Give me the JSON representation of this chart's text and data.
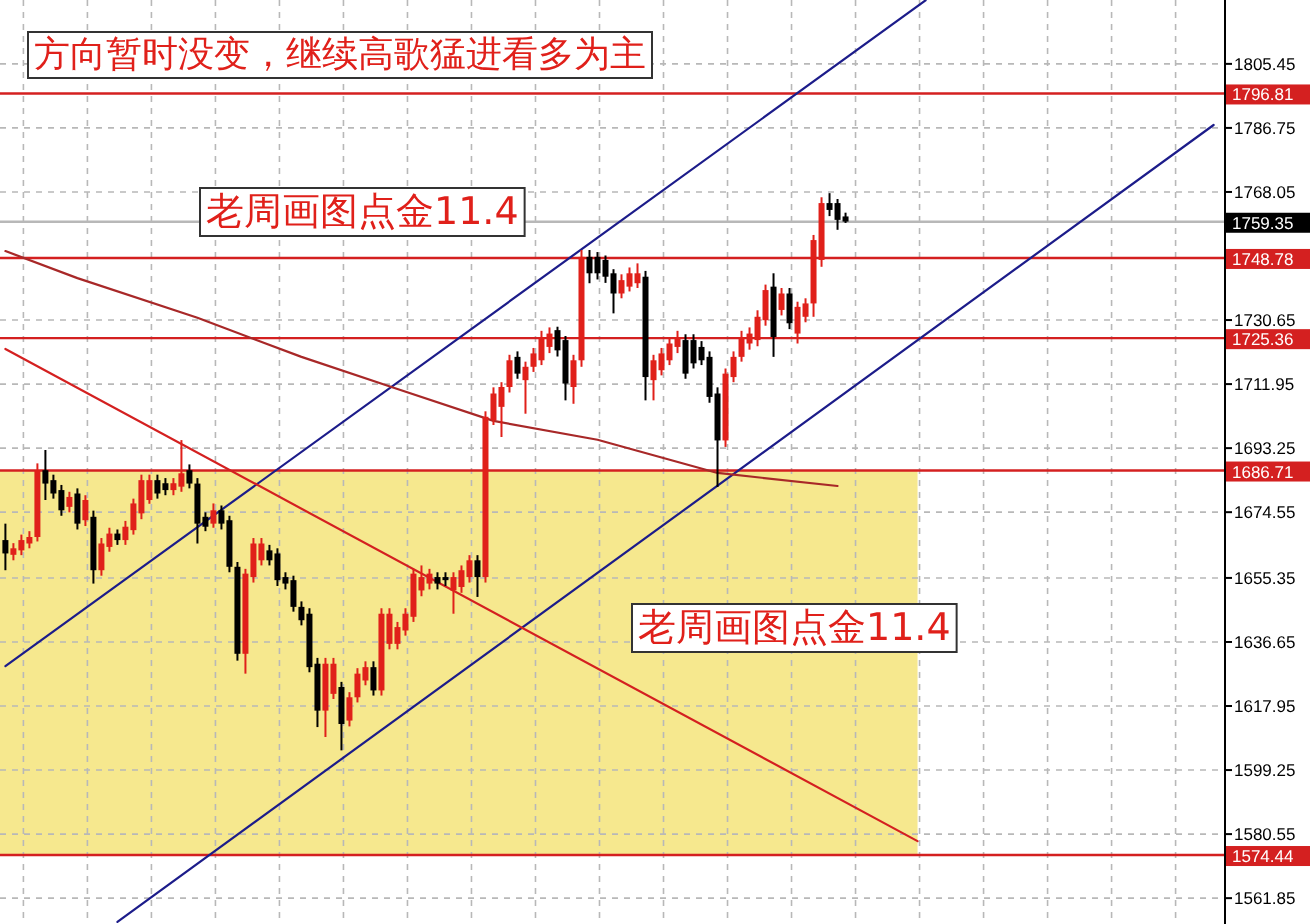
{
  "chart_data": {
    "type": "candlestick",
    "title": "方向暂时没变，继续高歌猛进看多为主",
    "annotations": [
      "老周画图点金11.4",
      "老周画图点金11.4"
    ],
    "categories": [
      null,
      null,
      null,
      null,
      null,
      null,
      null,
      null,
      null,
      null,
      null,
      null,
      null,
      null,
      null,
      null,
      null,
      null,
      null,
      null,
      null,
      null,
      null,
      null,
      null,
      null,
      null,
      null,
      null,
      null,
      null,
      null,
      null,
      null,
      null,
      null,
      null,
      null,
      null,
      null,
      null,
      null,
      null,
      null,
      null,
      null,
      null,
      null,
      null,
      null,
      null,
      null,
      null,
      null,
      null,
      null,
      null,
      null,
      null,
      null,
      null,
      null,
      null,
      null,
      null,
      null,
      null,
      null,
      null,
      null,
      null,
      null,
      null,
      null,
      null,
      null,
      null,
      null,
      null,
      null,
      null,
      null,
      null,
      null,
      null,
      null,
      null,
      null,
      null,
      null,
      null,
      null,
      null,
      null,
      null,
      null,
      null,
      null,
      null,
      null,
      null,
      null,
      null,
      null,
      null,
      null,
      null,
      null,
      null,
      null,
      null,
      null,
      null,
      null,
      null,
      null,
      null,
      null,
      null,
      null,
      null,
      null,
      null,
      null,
      null,
      null,
      null,
      null,
      null,
      null,
      null,
      null,
      null,
      null,
      null,
      null,
      null,
      null,
      null,
      null,
      null,
      null,
      null,
      null,
      null,
      null,
      null,
      null,
      null,
      null,
      null,
      null
    ],
    "ohlc": [
      [
        1666.4,
        1671.2,
        1657.6,
        1662.5
      ],
      [
        1662.1,
        1665.5,
        1660.5,
        1664.0
      ],
      [
        1663.4,
        1668,
        1662,
        1666.4
      ],
      [
        1665.4,
        1669,
        1664,
        1667.3
      ],
      [
        1667.3,
        1688.8,
        1666,
        1686.8
      ],
      [
        1686.8,
        1692.7,
        1678.1,
        1682.9
      ],
      [
        1683.9,
        1685.5,
        1678.5,
        1680.0
      ],
      [
        1681.0,
        1682.5,
        1673.5,
        1675.1
      ],
      [
        1676.1,
        1680.5,
        1674.5,
        1679.0
      ],
      [
        1680.0,
        1681.5,
        1669.5,
        1671.2
      ],
      [
        1672.2,
        1679.5,
        1670.5,
        1678.1
      ],
      [
        1673.2,
        1675,
        1653.7,
        1657.6
      ],
      [
        1657.6,
        1667,
        1656,
        1665.4
      ],
      [
        1664.4,
        1670,
        1663,
        1668.3
      ],
      [
        1668.3,
        1669.5,
        1665,
        1666.4
      ],
      [
        1666.4,
        1672,
        1665,
        1670.3
      ],
      [
        1669.3,
        1678.5,
        1668,
        1677.1
      ],
      [
        1674.2,
        1685.5,
        1672.5,
        1683.9
      ],
      [
        1678.1,
        1685.5,
        1677,
        1683.9
      ],
      [
        1683.9,
        1685.5,
        1678.5,
        1680.0
      ],
      [
        1683.0,
        1684.5,
        1679.5,
        1681.0
      ],
      [
        1681.0,
        1684.5,
        1679.5,
        1683.0
      ],
      [
        1682.0,
        1695.6,
        1680.5,
        1685.9
      ],
      [
        1686.8,
        1688.5,
        1681.5,
        1682.9
      ],
      [
        1682.9,
        1684.5,
        1665.4,
        1671.2
      ],
      [
        1673.2,
        1674.5,
        1669,
        1670.3
      ],
      [
        1671.2,
        1677.1,
        1670,
        1675.1
      ],
      [
        1675.1,
        1676.5,
        1669.5,
        1671.2
      ],
      [
        1672.2,
        1673.5,
        1657,
        1658.6
      ],
      [
        1658.6,
        1660,
        1631.2,
        1633.2
      ],
      [
        1633.2,
        1658,
        1627.4,
        1656.6
      ],
      [
        1655.6,
        1667,
        1654,
        1665.4
      ],
      [
        1660.5,
        1667,
        1659,
        1665.4
      ],
      [
        1663.4,
        1665,
        1659,
        1660.5
      ],
      [
        1662.5,
        1664,
        1653,
        1654.7
      ],
      [
        1655.6,
        1657,
        1652,
        1653.7
      ],
      [
        1654.7,
        1656,
        1645.5,
        1646.9
      ],
      [
        1646.9,
        1648.5,
        1641.5,
        1643.0
      ],
      [
        1644.9,
        1646.5,
        1627.8,
        1629.3
      ],
      [
        1630.3,
        1632,
        1611.8,
        1616.6
      ],
      [
        1616.6,
        1632,
        1608.9,
        1630.3
      ],
      [
        1621.5,
        1632,
        1620,
        1630.3
      ],
      [
        1623.5,
        1625,
        1605,
        1612.7
      ],
      [
        1613.7,
        1622,
        1612,
        1620.5
      ],
      [
        1620.5,
        1629,
        1619,
        1627.4
      ],
      [
        1625.4,
        1631,
        1624,
        1629.3
      ],
      [
        1629.3,
        1631,
        1621,
        1622.5
      ],
      [
        1622.5,
        1646.5,
        1621,
        1644.9
      ],
      [
        1636.1,
        1646.5,
        1634.5,
        1644.9
      ],
      [
        1636.1,
        1642.5,
        1634.5,
        1641.0
      ],
      [
        1640.0,
        1646.5,
        1638.5,
        1644.9
      ],
      [
        1644.0,
        1658,
        1642.5,
        1656.6
      ],
      [
        1651.7,
        1659,
        1650,
        1655.6
      ],
      [
        1653.7,
        1658,
        1652,
        1656.6
      ],
      [
        1655.6,
        1657,
        1652,
        1653.7
      ],
      [
        1655.6,
        1657,
        1653,
        1654.7
      ],
      [
        1651.7,
        1657,
        1644.9,
        1655.6
      ],
      [
        1652.7,
        1659,
        1651,
        1657.6
      ],
      [
        1655.6,
        1662,
        1654,
        1660.5
      ],
      [
        1660.5,
        1662,
        1649.8,
        1655.6
      ],
      [
        1655.6,
        1704,
        1654,
        1702.4
      ],
      [
        1701.4,
        1711,
        1700,
        1709.2
      ],
      [
        1705.3,
        1712.5,
        1696.5,
        1711.1
      ],
      [
        1711.1,
        1720.5,
        1709.5,
        1718.9
      ],
      [
        1719.9,
        1721.5,
        1713.5,
        1715.0
      ],
      [
        1713.1,
        1718.5,
        1703.3,
        1717.0
      ],
      [
        1717.0,
        1722.5,
        1715.5,
        1720.9
      ],
      [
        1718.9,
        1727.5,
        1717.5,
        1725.7
      ],
      [
        1722.8,
        1728.5,
        1721,
        1726.7
      ],
      [
        1727.7,
        1728.7,
        1720,
        1721.8
      ],
      [
        1724.8,
        1726,
        1707.2,
        1712.1
      ],
      [
        1711.1,
        1720.5,
        1706.2,
        1718.9
      ],
      [
        1718.9,
        1751.1,
        1717,
        1749.1
      ],
      [
        1749.1,
        1751.1,
        1741.4,
        1744.3
      ],
      [
        1749.1,
        1750.5,
        1742.5,
        1744.3
      ],
      [
        1748.2,
        1749.5,
        1741.5,
        1743.3
      ],
      [
        1744.3,
        1745.5,
        1732.6,
        1738.4
      ],
      [
        1738.4,
        1744,
        1737,
        1742.3
      ],
      [
        1740.4,
        1746,
        1739,
        1744.3
      ],
      [
        1741.4,
        1747.2,
        1740,
        1744.3
      ],
      [
        1743.3,
        1745,
        1707.2,
        1714.0
      ],
      [
        1713.1,
        1720.5,
        1707.2,
        1718.9
      ],
      [
        1716.0,
        1722.5,
        1714.5,
        1720.9
      ],
      [
        1718.9,
        1725.5,
        1717.5,
        1723.8
      ],
      [
        1722.8,
        1727.5,
        1721,
        1725.7
      ],
      [
        1724.8,
        1726.5,
        1713.5,
        1715.0
      ],
      [
        1724.8,
        1726.5,
        1716.5,
        1718.0
      ],
      [
        1722.8,
        1724.5,
        1717.5,
        1718.9
      ],
      [
        1719.9,
        1721.5,
        1706.5,
        1708.2
      ],
      [
        1709.2,
        1711,
        1681.9,
        1695.5
      ],
      [
        1695.5,
        1716.5,
        1693.6,
        1715.0
      ],
      [
        1714.0,
        1721.5,
        1712.5,
        1719.9
      ],
      [
        1719.9,
        1727.5,
        1718.5,
        1725.7
      ],
      [
        1723.8,
        1728.5,
        1722,
        1726.7
      ],
      [
        1724.8,
        1733.5,
        1723,
        1731.6
      ],
      [
        1730.6,
        1741,
        1729,
        1739.4
      ],
      [
        1740.4,
        1744.3,
        1719.9,
        1725.7
      ],
      [
        1733.6,
        1740,
        1732,
        1738.4
      ],
      [
        1738.4,
        1740,
        1728,
        1729.7
      ],
      [
        1726.7,
        1736,
        1723.8,
        1734.5
      ],
      [
        1731.6,
        1737,
        1730,
        1735.5
      ],
      [
        1735.5,
        1755.5,
        1731.6,
        1754.0
      ],
      [
        1748.2,
        1766.5,
        1746.2,
        1764.8
      ],
      [
        1764.8,
        1767.7,
        1761,
        1762.8
      ],
      [
        1764.8,
        1766,
        1757,
        1759.9
      ],
      [
        1760.9,
        1762,
        1759,
        1759.4
      ],
      null,
      null,
      null,
      null,
      null,
      null,
      null,
      null,
      null,
      null,
      null,
      null,
      null,
      null,
      null,
      null,
      null,
      null,
      null,
      null,
      null,
      null,
      null,
      null,
      null,
      null,
      null,
      null,
      null,
      null,
      null,
      null,
      null,
      null,
      null,
      null,
      null,
      null,
      null,
      null,
      null,
      null,
      null,
      null,
      null,
      null
    ],
    "colors": [
      "#000000",
      "#e0201a",
      "#e0201a",
      "#e0201a",
      "#e0201a",
      "#000000",
      "#000000",
      "#000000",
      "#e0201a",
      "#000000",
      "#e0201a",
      "#000000",
      "#e0201a",
      "#e0201a",
      "#000000",
      "#e0201a",
      "#e0201a",
      "#e0201a",
      "#e0201a",
      "#000000",
      "#000000",
      "#e0201a",
      "#e0201a",
      "#000000",
      "#000000",
      "#000000",
      "#e0201a",
      "#000000",
      "#000000",
      "#000000",
      "#e0201a",
      "#e0201a",
      "#e0201a",
      "#000000",
      "#000000",
      "#000000",
      "#000000",
      "#000000",
      "#000000",
      "#000000",
      "#e0201a",
      "#e0201a",
      "#000000",
      "#e0201a",
      "#e0201a",
      "#e0201a",
      "#000000",
      "#e0201a",
      "#e0201a",
      "#e0201a",
      "#e0201a",
      "#e0201a",
      "#e0201a",
      "#e0201a",
      "#000000",
      "#000000",
      "#e0201a",
      "#e0201a",
      "#e0201a",
      "#000000",
      "#e0201a",
      "#e0201a",
      "#e0201a",
      "#e0201a",
      "#000000",
      "#e0201a",
      "#e0201a",
      "#e0201a",
      "#e0201a",
      "#000000",
      "#000000",
      "#e0201a",
      "#e0201a",
      "#000000",
      "#000000",
      "#000000",
      "#000000",
      "#e0201a",
      "#e0201a",
      "#e0201a",
      "#000000",
      "#e0201a",
      "#e0201a",
      "#e0201a",
      "#e0201a",
      "#000000",
      "#000000",
      "#000000",
      "#000000",
      "#000000",
      "#e0201a",
      "#e0201a",
      "#e0201a",
      "#e0201a",
      "#e0201a",
      "#e0201a",
      "#000000",
      "#e0201a",
      "#000000",
      "#e0201a",
      "#e0201a",
      "#e0201a",
      "#e0201a",
      "#000000",
      "#000000",
      "#000000",
      null,
      null,
      null,
      null,
      null,
      null,
      null,
      null,
      null,
      null,
      null,
      null,
      null,
      null,
      null,
      null,
      null,
      null,
      null,
      null,
      null,
      null,
      null,
      null,
      null,
      null,
      null,
      null,
      null,
      null,
      null,
      null,
      null,
      null,
      null,
      null,
      null,
      null,
      null,
      null,
      null,
      null,
      null,
      null,
      null,
      null
    ],
    "series": [
      {
        "type": "line",
        "color": "#1c1c8a",
        "values": [
          1629.6,
          null,
          null,
          null,
          null,
          null,
          null,
          null,
          null,
          null,
          null,
          null,
          null,
          null,
          null,
          null,
          null,
          null,
          null,
          null,
          null,
          null,
          null,
          null,
          null,
          null,
          null,
          null,
          null,
          null,
          null,
          null,
          null,
          null,
          null,
          null,
          null,
          null,
          null,
          null,
          null,
          null,
          null,
          null,
          null,
          null,
          null,
          null,
          null,
          null,
          null,
          null,
          null,
          null,
          null,
          null,
          null,
          null,
          null,
          null,
          null,
          null,
          null,
          null,
          null,
          null,
          null,
          null,
          null,
          null,
          null,
          null,
          null,
          null,
          null,
          null,
          null,
          null,
          null,
          null,
          null,
          null,
          null,
          null,
          null,
          null,
          null,
          null,
          null,
          null,
          null,
          null,
          null,
          null,
          null,
          null,
          null,
          null,
          null,
          null,
          null,
          null,
          null,
          null,
          null,
          null,
          null,
          null,
          null,
          null,
          null,
          null,
          null,
          null,
          null,
          1824.0,
          null,
          null,
          null,
          null,
          null,
          null,
          null,
          null,
          null,
          null,
          null,
          null,
          null,
          null,
          null,
          null,
          null,
          null,
          null,
          null,
          null,
          null,
          null,
          null,
          null,
          null,
          null,
          null,
          null,
          null,
          null,
          null,
          null,
          null,
          null,
          null
        ]
      },
      {
        "type": "line",
        "color": "#1c1c8a",
        "values": [
          null,
          null,
          null,
          null,
          null,
          null,
          null,
          null,
          null,
          null,
          null,
          null,
          null,
          null,
          1554.9,
          null,
          null,
          null,
          null,
          null,
          null,
          null,
          null,
          null,
          null,
          null,
          null,
          null,
          null,
          null,
          null,
          null,
          null,
          null,
          null,
          null,
          null,
          null,
          null,
          null,
          null,
          null,
          null,
          null,
          null,
          null,
          null,
          null,
          null,
          null,
          null,
          null,
          null,
          null,
          null,
          null,
          null,
          null,
          null,
          null,
          null,
          null,
          null,
          null,
          null,
          null,
          null,
          null,
          null,
          null,
          null,
          null,
          null,
          null,
          null,
          null,
          null,
          null,
          null,
          null,
          null,
          null,
          null,
          null,
          null,
          null,
          null,
          null,
          null,
          null,
          null,
          null,
          null,
          null,
          null,
          null,
          null,
          null,
          null,
          null,
          null,
          null,
          null,
          null,
          null,
          null,
          null,
          null,
          null,
          null,
          null,
          null,
          null,
          null,
          null,
          null,
          null,
          null,
          null,
          null,
          null,
          null,
          null,
          null,
          null,
          null,
          null,
          null,
          null,
          null,
          null,
          null,
          null,
          null,
          null,
          null,
          null,
          null,
          null,
          null,
          null,
          null,
          null,
          null,
          null,
          null,
          null,
          null,
          null,
          null,
          null,
          1787.6
        ]
      },
      {
        "type": "line",
        "color": "#d42020",
        "values": [
          1722.2,
          null,
          null,
          null,
          null,
          null,
          null,
          null,
          null,
          null,
          null,
          null,
          null,
          null,
          null,
          null,
          null,
          null,
          null,
          null,
          null,
          null,
          null,
          null,
          null,
          null,
          null,
          null,
          null,
          null,
          null,
          null,
          null,
          null,
          null,
          null,
          null,
          null,
          null,
          null,
          null,
          null,
          null,
          null,
          null,
          null,
          null,
          null,
          null,
          null,
          null,
          null,
          null,
          null,
          null,
          null,
          null,
          null,
          null,
          null,
          null,
          null,
          null,
          null,
          null,
          null,
          null,
          null,
          null,
          null,
          null,
          null,
          null,
          null,
          null,
          null,
          null,
          null,
          null,
          null,
          null,
          null,
          null,
          null,
          null,
          null,
          null,
          null,
          null,
          null,
          null,
          null,
          null,
          null,
          null,
          null,
          null,
          null,
          null,
          null,
          null,
          null,
          null,
          null,
          null,
          null,
          null,
          null,
          null,
          null,
          null,
          null,
          null,
          null,
          1578.5,
          null,
          null,
          null,
          null,
          null,
          null,
          null,
          null,
          null,
          null,
          null,
          null,
          null,
          null,
          null,
          null,
          null,
          null,
          null,
          null,
          null,
          null,
          null,
          null,
          null,
          null,
          null,
          null,
          null,
          null,
          null,
          null,
          null,
          null,
          null,
          null,
          null
        ]
      },
      {
        "type": "line",
        "color": "#a82828",
        "values": [
          1750.8,
          null,
          null,
          null,
          null,
          null,
          null,
          null,
          null,
          1742.9,
          null,
          null,
          null,
          null,
          null,
          null,
          null,
          null,
          null,
          null,
          null,
          null,
          null,
          null,
          1731.3,
          null,
          null,
          null,
          null,
          null,
          null,
          null,
          null,
          null,
          null,
          null,
          null,
          1719.9,
          null,
          null,
          null,
          null,
          null,
          null,
          null,
          null,
          null,
          null,
          null,
          1710.5,
          null,
          null,
          null,
          null,
          null,
          null,
          null,
          null,
          null,
          null,
          null,
          1701.2,
          null,
          null,
          null,
          null,
          null,
          null,
          null,
          null,
          null,
          null,
          null,
          null,
          1695.7,
          null,
          null,
          null,
          null,
          null,
          null,
          null,
          null,
          null,
          null,
          null,
          null,
          null,
          null,
          1686.0,
          null,
          null,
          null,
          null,
          null,
          null,
          null,
          null,
          null,
          null,
          null,
          null,
          null,
          null,
          1682.2,
          null,
          null,
          null,
          null,
          null,
          null,
          null,
          null,
          null,
          null,
          null,
          null,
          null,
          null,
          null,
          null,
          null,
          null,
          null,
          null,
          null,
          null,
          null,
          null,
          null,
          null,
          null,
          null,
          null,
          null,
          null,
          null,
          null,
          null,
          null,
          null,
          null,
          null,
          null,
          null,
          null,
          null,
          null,
          null,
          null,
          null,
          null
        ]
      }
    ],
    "ylim": [
      1554.3,
      1824.1
    ],
    "yticks": [
      1805.45,
      1786.75,
      1768.05,
      1730.65,
      1711.95,
      1693.25,
      1674.55,
      1655.35,
      1636.65,
      1617.95,
      1599.25,
      1580.55,
      1561.85
    ],
    "tick_labels": "y",
    "grid": true,
    "bands": [
      {
        "axis": "y",
        "from": 1574.44,
        "to": 1686.71,
        "color": "#f6e88e"
      }
    ],
    "ref_lines": [
      {
        "axis": "y",
        "value": 1796.81,
        "label": "1796.81",
        "color": "#d42020"
      },
      {
        "axis": "y",
        "value": 1759.35,
        "label": "1759.35",
        "color": "#b8b8b8"
      },
      {
        "axis": "y",
        "value": 1748.78,
        "label": "1748.78",
        "color": "#d42020"
      },
      {
        "axis": "y",
        "value": 1725.36,
        "label": "1725.36",
        "color": "#d42020"
      },
      {
        "axis": "y",
        "value": 1686.71,
        "label": "1686.71",
        "color": "#d42020"
      },
      {
        "axis": "y",
        "value": 1574.44,
        "label": "1574.44",
        "color": "#d42020"
      }
    ]
  }
}
